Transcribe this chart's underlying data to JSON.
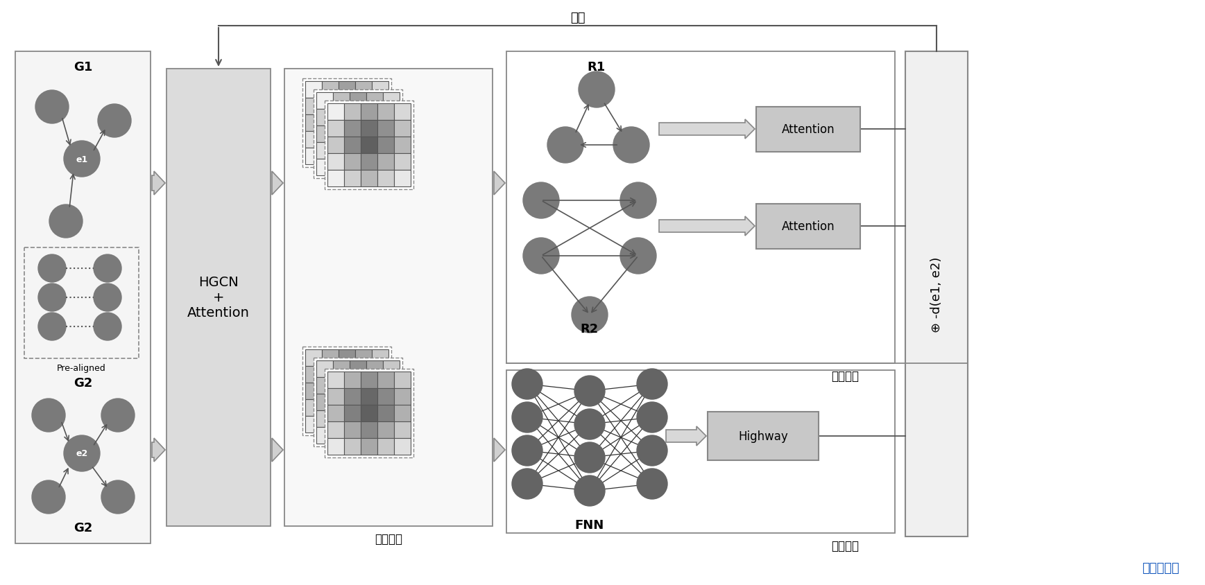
{
  "bg_color": "#ffffff",
  "node_color": "#7a7a7a",
  "node_color_dark": "#646464",
  "matrix_colors_top": [
    [
      "#f0f0f0",
      "#c0c0c0",
      "#a0a0a0",
      "#b8b8b8",
      "#d8d8d8"
    ],
    [
      "#d0d0d0",
      "#909090",
      "#707070",
      "#909090",
      "#c0c0c0"
    ],
    [
      "#c8c8c8",
      "#888888",
      "#606060",
      "#888888",
      "#b8b8b8"
    ],
    [
      "#e0e0e0",
      "#b0b0b0",
      "#909090",
      "#b0b0b0",
      "#d0d0d0"
    ],
    [
      "#f0f0f0",
      "#d0d0d0",
      "#b8b8b8",
      "#d0d0d0",
      "#e8e8e8"
    ]
  ],
  "matrix_colors_bot": [
    [
      "#d8d8d8",
      "#b0b0b0",
      "#909090",
      "#a8a8a8",
      "#c8c8c8"
    ],
    [
      "#c0c0c0",
      "#888888",
      "#686868",
      "#888888",
      "#b0b0b0"
    ],
    [
      "#b8b8b8",
      "#808080",
      "#606060",
      "#808080",
      "#b0b0b0"
    ],
    [
      "#d0d0d0",
      "#a8a8a8",
      "#888888",
      "#a8a8a8",
      "#c8c8c8"
    ],
    [
      "#e8e8e8",
      "#c8c8c8",
      "#a8a8a8",
      "#c8c8c8",
      "#e0e0e0"
    ]
  ],
  "title": "迭代",
  "label_hgcn": "HGCN\n+\nAttention",
  "label_entity": "实体嵌入",
  "label_relation": "关系推理",
  "label_attr": "属性语义",
  "label_r1": "R1",
  "label_r2": "R2",
  "label_g1": "G1",
  "label_g2": "G2",
  "label_e1": "e1",
  "label_e2": "e2",
  "label_pre": "Pre-aligned",
  "label_attention": "Attention",
  "label_highway": "Highway",
  "label_fnn": "FNN",
  "label_output": "⊕ -d(e1, e2)",
  "watermark": "自动秒链接"
}
